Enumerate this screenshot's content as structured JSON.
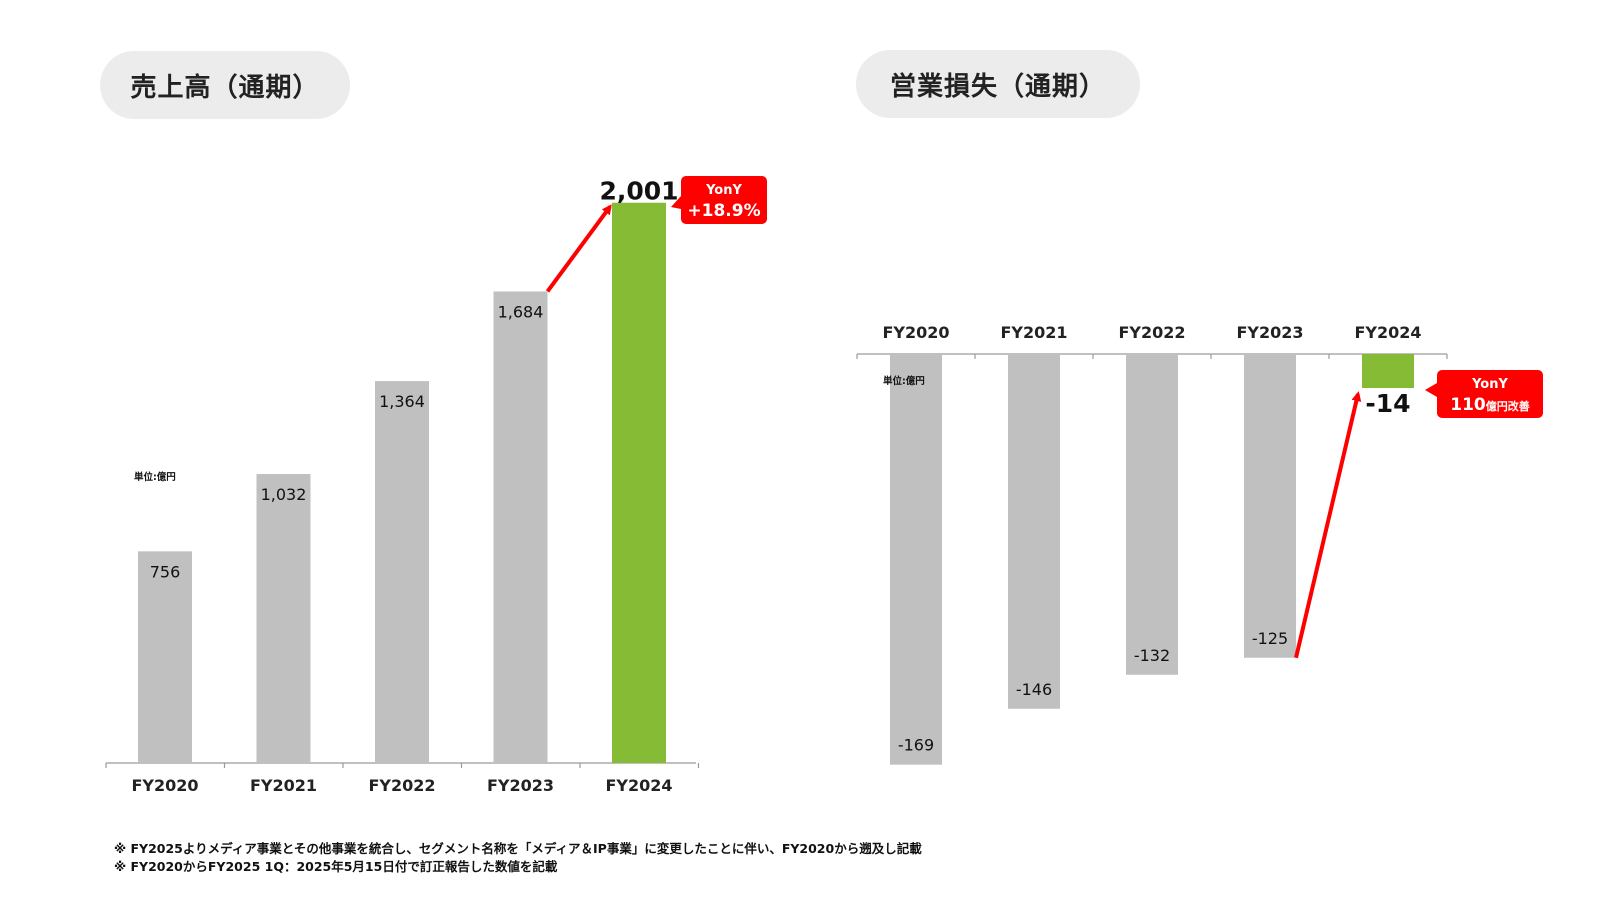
{
  "chart_data": [
    {
      "type": "bar",
      "title": "売上高（通期）",
      "unit_label": "単位:億円",
      "categories": [
        "FY2020",
        "FY2021",
        "FY2022",
        "FY2023",
        "FY2024"
      ],
      "values": [
        756,
        1032,
        1364,
        1684,
        2001
      ],
      "value_labels": [
        "756",
        "1,032",
        "1,364",
        "1,684",
        "2,001"
      ],
      "highlight_index": 4,
      "colors": {
        "bar": "#c0c0c0",
        "highlight": "#86bc35",
        "callout": "#ff0000"
      },
      "callout": {
        "line1": "YonY",
        "line2": "+18.9%"
      }
    },
    {
      "type": "bar",
      "title": "営業損失（通期）",
      "unit_label": "単位:億円",
      "categories": [
        "FY2020",
        "FY2021",
        "FY2022",
        "FY2023",
        "FY2024"
      ],
      "values": [
        -169,
        -146,
        -132,
        -125,
        -14
      ],
      "value_labels": [
        "-169",
        "-146",
        "-132",
        "-125",
        "-14"
      ],
      "highlight_index": 4,
      "colors": {
        "bar": "#c0c0c0",
        "highlight": "#86bc35",
        "callout": "#ff0000"
      },
      "callout": {
        "line1": "YonY",
        "line2_num": "110",
        "line2_unit": "億円改善"
      }
    }
  ],
  "footnotes": [
    "※  FY2025よりメディア事業とその他事業を統合し、セグメント名称を「メディア＆IP事業」に変更したことに伴い、FY2020から遡及し記載",
    "※  FY2020からFY2025 1Q：2025年5月15日付で訂正報告した数値を記載"
  ]
}
